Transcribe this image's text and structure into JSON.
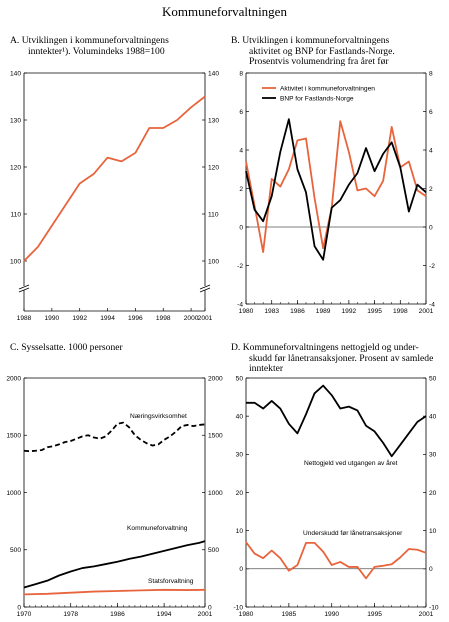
{
  "page_title": "Kommuneforvaltningen",
  "colors": {
    "orange": "#E8643C",
    "black": "#000000"
  },
  "chart_data": [
    {
      "id": "A",
      "type": "line",
      "title_lines": [
        "A.  Utviklingen i kommuneforvaltningens",
        "inntekter¹). Volumindeks 1988=100"
      ],
      "x_tick_labels": [
        "1988",
        "1990",
        "1992",
        "1994",
        "1996",
        "1998",
        "2000",
        "2001"
      ],
      "y_ticks": [
        "140",
        "130",
        "120",
        "110",
        "100"
      ],
      "y_ticks_right": [
        "140",
        "130",
        "120",
        "110",
        "100"
      ],
      "axis_break": true,
      "xlim": [
        1988,
        2001
      ],
      "ylim": [
        100,
        140
      ],
      "series": [
        {
          "color": "#E8643C",
          "x": [
            1988,
            1989,
            1990,
            1991,
            1992,
            1993,
            1994,
            1995,
            1996,
            1997,
            1998,
            1999,
            2000,
            2001
          ],
          "y": [
            100,
            103,
            107.5,
            112,
            116.5,
            118.5,
            122,
            121.2,
            123,
            128.3,
            128.3,
            130,
            132.7,
            135
          ]
        }
      ]
    },
    {
      "id": "B",
      "type": "line",
      "title_lines": [
        "B.  Utviklingen i kommuneforvaltningens",
        "aktivitet og BNP for Fastlands-Norge.",
        "Prosentvis volumendring fra året før"
      ],
      "x_tick_labels": [
        "1980",
        "1983",
        "1986",
        "1989",
        "1992",
        "1995",
        "1998",
        "2001"
      ],
      "x_tick_values": [
        1980,
        1983,
        1986,
        1989,
        1992,
        1995,
        1998,
        2001
      ],
      "y_ticks": [
        "8",
        "6",
        "4",
        "2",
        "0",
        "-2",
        "-4"
      ],
      "y_ticks_right": [
        "8",
        "6",
        "4",
        "2",
        "0",
        "-2",
        "-4"
      ],
      "xlim": [
        1980,
        2001
      ],
      "ylim": [
        -4,
        8
      ],
      "series": [
        {
          "name": "Aktivitet i kommuneforvaltningen",
          "color": "#E8643C",
          "x": [
            1980,
            1981,
            1982,
            1983,
            1984,
            1985,
            1986,
            1987,
            1988,
            1989,
            1990,
            1991,
            1992,
            1993,
            1994,
            1995,
            1996,
            1997,
            1998,
            1999,
            2000,
            2001
          ],
          "y": [
            3.4,
            1.1,
            -1.3,
            2.5,
            2.1,
            3.0,
            4.5,
            4.6,
            1.5,
            -1.1,
            1.0,
            5.5,
            3.9,
            1.9,
            2.0,
            1.6,
            2.4,
            5.2,
            3.1,
            3.4,
            1.9,
            1.6
          ]
        },
        {
          "name": "BNP for Fastlands-Norge",
          "color": "#000000",
          "x": [
            1980,
            1981,
            1982,
            1983,
            1984,
            1985,
            1986,
            1987,
            1988,
            1989,
            1990,
            1991,
            1992,
            1993,
            1994,
            1995,
            1996,
            1997,
            1998,
            1999,
            2000,
            2001
          ],
          "y": [
            2.9,
            0.9,
            0.3,
            1.6,
            3.9,
            5.6,
            3.0,
            1.8,
            -1.0,
            -1.7,
            1.0,
            1.4,
            2.2,
            2.8,
            4.1,
            2.9,
            3.8,
            4.4,
            3.1,
            0.8,
            2.2,
            1.8
          ]
        }
      ]
    },
    {
      "id": "C",
      "type": "line",
      "title_lines": [
        "C.  Sysselsatte. 1000 personer"
      ],
      "x_tick_labels": [
        "1970",
        "1978",
        "1986",
        "1994",
        "2001"
      ],
      "x_tick_values": [
        1970,
        1978,
        1986,
        1994,
        2001
      ],
      "y_ticks": [
        "2000",
        "1500",
        "1000",
        "500",
        "0"
      ],
      "y_ticks_right": [
        "2000",
        "1500",
        "1000",
        "500",
        "0"
      ],
      "xlim": [
        1970,
        2001
      ],
      "ylim": [
        0,
        2000
      ],
      "series": [
        {
          "name": "Næringsvirksomhet",
          "color": "#000000",
          "dashed": true,
          "x": [
            1970,
            1971,
            1972,
            1973,
            1974,
            1975,
            1976,
            1977,
            1978,
            1979,
            1980,
            1981,
            1982,
            1983,
            1984,
            1985,
            1986,
            1987,
            1988,
            1989,
            1990,
            1991,
            1992,
            1993,
            1994,
            1995,
            1996,
            1997,
            1998,
            1999,
            2000,
            2001
          ],
          "y": [
            1365,
            1360,
            1365,
            1370,
            1395,
            1405,
            1420,
            1440,
            1450,
            1470,
            1490,
            1500,
            1480,
            1470,
            1490,
            1540,
            1600,
            1610,
            1570,
            1500,
            1460,
            1430,
            1410,
            1420,
            1460,
            1490,
            1530,
            1580,
            1590,
            1580,
            1590,
            1595
          ]
        },
        {
          "name": "Kommuneforvaltning",
          "color": "#000000",
          "x": [
            1970,
            1972,
            1974,
            1976,
            1978,
            1980,
            1982,
            1984,
            1986,
            1988,
            1990,
            1992,
            1994,
            1996,
            1998,
            2000,
            2001
          ],
          "y": [
            170,
            200,
            230,
            275,
            310,
            340,
            355,
            375,
            395,
            420,
            440,
            465,
            490,
            515,
            540,
            560,
            575
          ]
        },
        {
          "name": "Statsforvaltning",
          "color": "#E8643C",
          "x": [
            1970,
            1974,
            1978,
            1982,
            1986,
            1990,
            1994,
            1998,
            2001
          ],
          "y": [
            110,
            115,
            125,
            135,
            140,
            145,
            150,
            148,
            150
          ]
        }
      ]
    },
    {
      "id": "D",
      "type": "line",
      "title_lines": [
        "D.  Kommuneforvaltningens nettogjeld og under-",
        "skudd før lånetransaksjoner. Prosent av samlede",
        "inntekter"
      ],
      "x_tick_labels": [
        "1980",
        "1985",
        "1990",
        "1995",
        "2001"
      ],
      "x_tick_values": [
        1980,
        1985,
        1990,
        1995,
        2001
      ],
      "y_ticks": [
        "50",
        "40",
        "30",
        "20",
        "10",
        "0",
        "-10"
      ],
      "y_ticks_right": [
        "50",
        "40",
        "30",
        "20",
        "10",
        "0",
        "-10"
      ],
      "xlim": [
        1980,
        2001
      ],
      "ylim": [
        -10,
        50
      ],
      "series": [
        {
          "name": "Nettogjeld ved utgangen av året",
          "color": "#000000",
          "x": [
            1980,
            1981,
            1982,
            1983,
            1984,
            1985,
            1986,
            1987,
            1988,
            1989,
            1990,
            1991,
            1992,
            1993,
            1994,
            1995,
            1996,
            1997,
            1998,
            1999,
            2000,
            2001
          ],
          "y": [
            43.5,
            43.5,
            42,
            44,
            42,
            38,
            35.5,
            40.5,
            46,
            48,
            45.5,
            42,
            42.5,
            41.5,
            37.5,
            36,
            33,
            29.5,
            32.5,
            35.5,
            38.5,
            40
          ]
        },
        {
          "name": "Underskudd før lånetransaksjoner",
          "color": "#E8643C",
          "x": [
            1980,
            1981,
            1982,
            1983,
            1984,
            1985,
            1986,
            1987,
            1988,
            1989,
            1990,
            1991,
            1992,
            1993,
            1994,
            1995,
            1996,
            1997,
            1998,
            1999,
            2000,
            2001
          ],
          "y": [
            7,
            4,
            2.8,
            4.8,
            2.8,
            -0.5,
            1,
            6.8,
            6.8,
            4.5,
            1,
            1.8,
            0.5,
            0.5,
            -2.5,
            0.5,
            0.8,
            1.2,
            3,
            5.2,
            5,
            4.2
          ]
        }
      ]
    }
  ],
  "inline_labels": {
    "B": {
      "series0": "Aktivitet i kommuneforvaltningen",
      "series1": "BNP for Fastlands-Norge"
    },
    "C": {
      "nv": "Næringsvirksomhet",
      "kf": "Kommuneforvaltning",
      "sf": "Statsforvaltning"
    },
    "D": {
      "ng": "Nettogjeld ved utgangen av året",
      "us": "Underskudd før lånetransaksjoner"
    }
  }
}
